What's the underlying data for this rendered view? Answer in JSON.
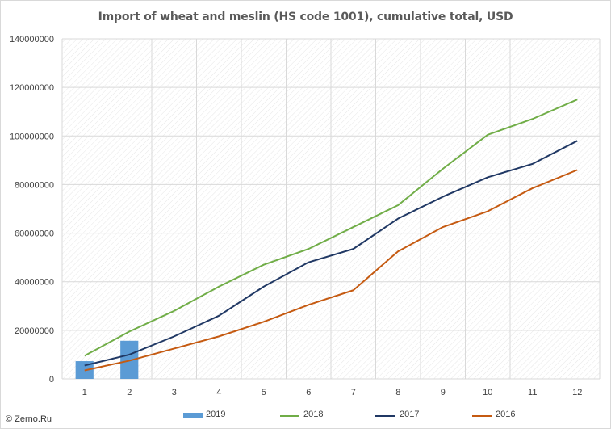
{
  "chart_data": {
    "type": "bar",
    "title": "Import of wheat and meslin (HS code 1001), cumulative total, USD",
    "categories": [
      "1",
      "2",
      "3",
      "4",
      "5",
      "6",
      "7",
      "8",
      "9",
      "10",
      "11",
      "12"
    ],
    "ylim": [
      0,
      140000000
    ],
    "yticks": [
      "0",
      "20000000",
      "40000000",
      "60000000",
      "80000000",
      "100000000",
      "120000000",
      "140000000"
    ],
    "grid": true,
    "legend_position": "bottom",
    "series": [
      {
        "name": "2019",
        "kind": "bar",
        "color": "#5b9bd5",
        "values": [
          7300000,
          15700000,
          null,
          null,
          null,
          null,
          null,
          null,
          null,
          null,
          null,
          null
        ]
      },
      {
        "name": "2018",
        "kind": "line",
        "color": "#70ad47",
        "values": [
          9500000,
          19500000,
          28000000,
          38000000,
          47000000,
          53500000,
          62500000,
          71500000,
          86500000,
          100500000,
          107000000,
          115000000
        ]
      },
      {
        "name": "2017",
        "kind": "line",
        "color": "#203864",
        "values": [
          5500000,
          10000000,
          17500000,
          26000000,
          38000000,
          48000000,
          53500000,
          66000000,
          75000000,
          83000000,
          88500000,
          98000000
        ]
      },
      {
        "name": "2016",
        "kind": "line",
        "color": "#c55a11",
        "values": [
          3500000,
          7500000,
          12500000,
          17500000,
          23500000,
          30500000,
          36500000,
          52500000,
          62500000,
          69000000,
          78500000,
          86000000
        ]
      }
    ]
  },
  "footer": {
    "source": "© Zerno.Ru"
  }
}
